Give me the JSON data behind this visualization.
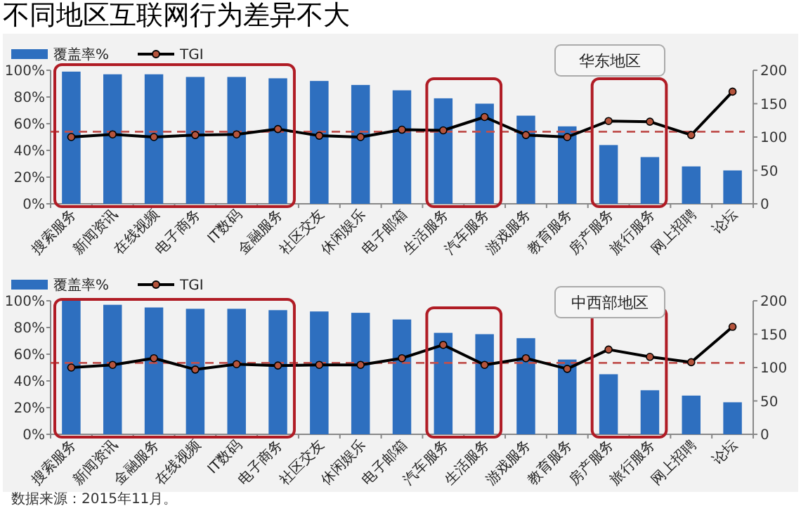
{
  "chart_data": [
    {
      "type": "bar",
      "title": "不同地区互联网行为差异不大",
      "annotations": [
        "华东地区"
      ],
      "categories": [
        "搜索服务",
        "新闻资讯",
        "在线视频",
        "电子商务",
        "IT数码",
        "金融服务",
        "社区交友",
        "休闲娱乐",
        "电子邮箱",
        "生活服务",
        "汽车服务",
        "游戏服务",
        "教育服务",
        "房产服务",
        "旅行服务",
        "网上招聘",
        "论坛"
      ],
      "series": [
        {
          "name": "覆盖率%",
          "color": "#2e6fbf",
          "values": [
            99,
            97,
            97,
            95,
            95,
            94,
            92,
            89,
            85,
            79,
            75,
            66,
            58,
            44,
            35,
            28,
            25
          ]
        },
        {
          "name": "TGI",
          "type": "line",
          "axis": "y2",
          "color": "#000000",
          "marker": "circle",
          "values": [
            100,
            104,
            100,
            103,
            104,
            112,
            102,
            100,
            111,
            110,
            130,
            103,
            100,
            124,
            123,
            103,
            168
          ]
        }
      ],
      "ylim": [
        0,
        100
      ],
      "yticks": [
        {
          "value": 0,
          "label": "0%"
        },
        {
          "value": 20,
          "label": "20%"
        },
        {
          "value": 40,
          "label": "40%"
        },
        {
          "value": 60,
          "label": "60%"
        },
        {
          "value": 80,
          "label": "80%"
        },
        {
          "value": 100,
          "label": "100%"
        }
      ],
      "y2lim": [
        0,
        200
      ],
      "y2ticks": [
        0,
        50,
        100,
        150,
        200
      ],
      "ref_lines": [
        {
          "axis": "y2",
          "value": 108,
          "color": "#c0504d",
          "line_style": "dashed"
        }
      ],
      "legend": "top left"
    },
    {
      "type": "bar",
      "annotations": [
        "中西部地区",
        "数据来源：2015年11月。"
      ],
      "categories": [
        "搜索服务",
        "新闻资讯",
        "金融服务",
        "在线视频",
        "IT数码",
        "电子商务",
        "社区交友",
        "休闲娱乐",
        "电子邮箱",
        "汽车服务",
        "生活服务",
        "游戏服务",
        "教育服务",
        "房产服务",
        "旅行服务",
        "网上招聘",
        "论坛"
      ],
      "series": [
        {
          "name": "覆盖率%",
          "color": "#2e6fbf",
          "values": [
            100,
            97,
            95,
            94,
            94,
            93,
            92,
            91,
            86,
            76,
            75,
            72,
            56,
            45,
            33,
            29,
            24
          ]
        },
        {
          "name": "TGI",
          "type": "line",
          "axis": "y2",
          "color": "#000000",
          "marker": "circle",
          "values": [
            100,
            104,
            114,
            97,
            105,
            103,
            104,
            104,
            114,
            134,
            104,
            114,
            98,
            127,
            116,
            108,
            161
          ]
        }
      ],
      "ylim": [
        0,
        100
      ],
      "yticks": [
        {
          "value": 0,
          "label": "0%"
        },
        {
          "value": 20,
          "label": "20%"
        },
        {
          "value": 40,
          "label": "40%"
        },
        {
          "value": 60,
          "label": "60%"
        },
        {
          "value": 80,
          "label": "80%"
        },
        {
          "value": 100,
          "label": "100%"
        }
      ],
      "y2lim": [
        0,
        200
      ],
      "y2ticks": [
        0,
        50,
        100,
        150,
        200
      ],
      "ref_lines": [
        {
          "axis": "y2",
          "value": 107,
          "color": "#c0504d",
          "line_style": "dashed"
        }
      ],
      "legend": "top left"
    }
  ]
}
